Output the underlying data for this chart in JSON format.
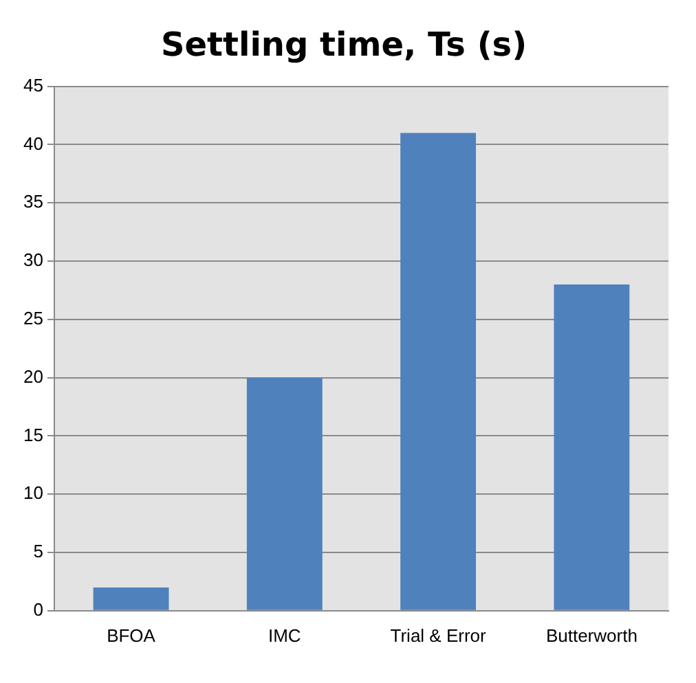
{
  "chart_data": {
    "type": "bar",
    "title": "Settling time, Ts (s)",
    "categories": [
      "BFOA",
      "IMC",
      "Trial & Error",
      "Butterworth"
    ],
    "values": [
      2,
      20,
      41,
      28
    ],
    "color": "#4f81bd",
    "ylim": [
      0,
      45
    ],
    "yticks": [
      0,
      5,
      10,
      15,
      20,
      25,
      30,
      35,
      40,
      45
    ],
    "grid": "y",
    "legend": false
  }
}
